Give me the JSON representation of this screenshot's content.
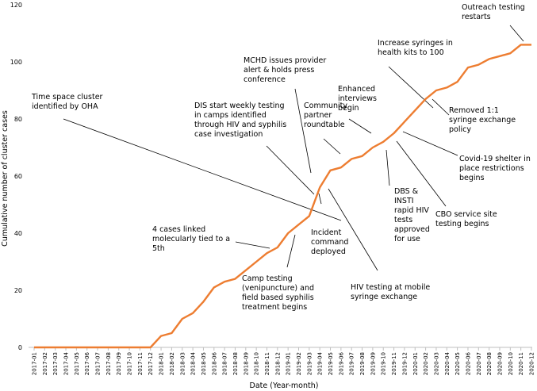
{
  "chart_data": {
    "type": "line",
    "xlabel": "Date (Year-month)",
    "ylabel": "Cumulative number of cluster cases",
    "ylim": [
      0,
      120
    ],
    "yticks": [
      0,
      20,
      40,
      60,
      80,
      100,
      120
    ],
    "series_color": "#ED7D31",
    "grid": false,
    "legend": "none",
    "x": [
      "2017-01",
      "2017-02",
      "2017-03",
      "2017-04",
      "2017-05",
      "2017-06",
      "2017-07",
      "2017-08",
      "2017-09",
      "2017-10",
      "2017-11",
      "2017-12",
      "2018-01",
      "2018-02",
      "2018-03",
      "2018-04",
      "2018-05",
      "2018-06",
      "2018-07",
      "2018-08",
      "2018-09",
      "2018-10",
      "2018-11",
      "2018-12",
      "2019-01",
      "2019-02",
      "2019-03",
      "2019-04",
      "2019-05",
      "2019-06",
      "2019-07",
      "2019-08",
      "2019-09",
      "2019-10",
      "2019-11",
      "2019-12",
      "2020-01",
      "2020-02",
      "2020-03",
      "2020-04",
      "2020-05",
      "2020-06",
      "2020-07",
      "2020-08",
      "2020-09",
      "2020-10",
      "2020-11",
      "2020-12"
    ],
    "series": [
      {
        "name": "Cumulative cluster cases",
        "values": [
          0,
          0,
          0,
          0,
          0,
          0,
          0,
          0,
          0,
          0,
          0,
          0,
          4,
          5,
          10,
          12,
          16,
          21,
          23,
          24,
          27,
          30,
          33,
          35,
          40,
          43,
          46,
          56,
          62,
          63,
          66,
          67,
          70,
          72,
          75,
          79,
          83,
          87,
          90,
          91,
          93,
          98,
          99,
          101,
          102,
          103,
          106,
          106
        ]
      }
    ],
    "annotations": [
      {
        "lines": [
          "Time space cluster",
          "identified by OHA"
        ]
      },
      {
        "lines": [
          "4 cases linked",
          "molecularly tied to a",
          "5th"
        ]
      },
      {
        "lines": [
          "DIS start weekly testing",
          "in camps identified",
          "through HIV and syphilis",
          "case investigation"
        ]
      },
      {
        "lines": [
          "Camp testing",
          "(venipuncture) and",
          "field based syphilis",
          "treatment begins"
        ]
      },
      {
        "lines": [
          "MCHD issues provider",
          "alert & holds press",
          "conference"
        ]
      },
      {
        "lines": [
          "Incident",
          "command",
          "deployed"
        ]
      },
      {
        "lines": [
          "Community",
          "partner",
          "roundtable"
        ]
      },
      {
        "lines": [
          "HIV testing at mobile",
          "syringe exchange"
        ]
      },
      {
        "lines": [
          "Enhanced",
          "interviews",
          "begin"
        ]
      },
      {
        "lines": [
          "DBS &",
          "INSTI",
          "rapid HIV",
          "tests",
          "approved",
          "for use"
        ]
      },
      {
        "lines": [
          "Increase syringes in",
          "health kits to 100"
        ]
      },
      {
        "lines": [
          "CBO service site",
          "testing begins"
        ]
      },
      {
        "lines": [
          "Removed 1:1",
          "syringe exchange",
          "policy"
        ]
      },
      {
        "lines": [
          "Covid-19 shelter in",
          "place restrictions",
          "begins"
        ]
      },
      {
        "lines": [
          "Outreach testing",
          "restarts"
        ]
      }
    ]
  }
}
